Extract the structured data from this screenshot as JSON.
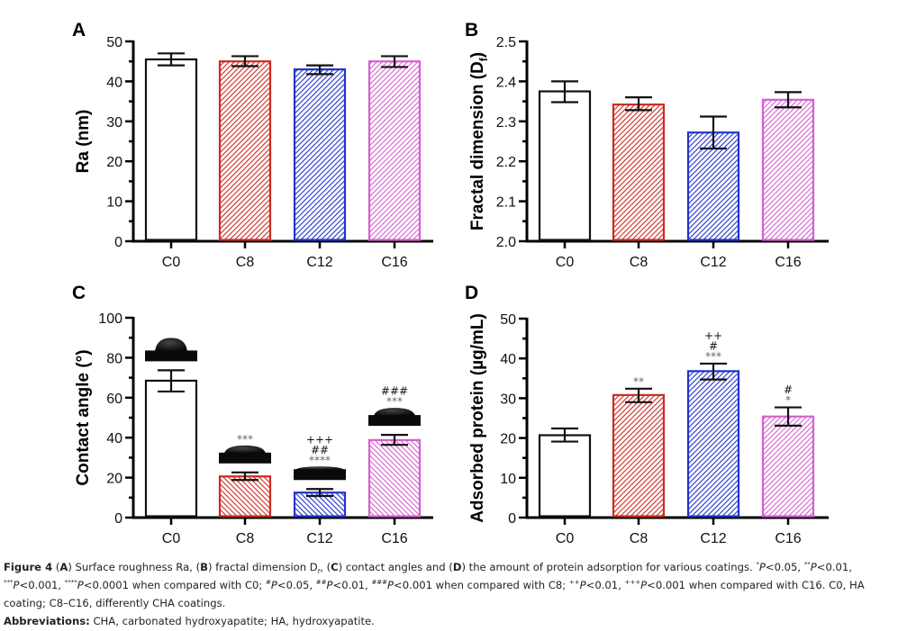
{
  "figure": {
    "colors": {
      "C0": "#111111",
      "C8": "#cc2a22",
      "C12": "#2233cc",
      "C16": "#d45fd0",
      "axis": "#000000",
      "annotation": "#666666",
      "annotation_dark": "#111111"
    }
  },
  "chart_data": [
    {
      "panel": "A",
      "type": "bar",
      "title": "",
      "xlabel": "",
      "ylabel": "Ra (nm)",
      "categories": [
        "C0",
        "C8",
        "C12",
        "C16"
      ],
      "values": [
        45.5,
        45.0,
        43.0,
        45.0
      ],
      "error_upper": [
        47.0,
        46.3,
        44.0,
        46.3
      ],
      "error_lower": [
        44.0,
        43.8,
        41.8,
        43.6
      ],
      "ylim": [
        0,
        50
      ],
      "yticks": [
        0,
        10,
        20,
        30,
        40,
        50
      ],
      "ytick_labels": [
        "0",
        "10",
        "20",
        "30",
        "40",
        "50"
      ],
      "minor_ytick_step": 5,
      "hatch": "backslash",
      "annotations": [
        [],
        [],
        [],
        []
      ],
      "droplets": [
        false,
        false,
        false,
        false
      ],
      "grid": false,
      "legend": "none"
    },
    {
      "panel": "B",
      "type": "bar",
      "title": "",
      "xlabel": "",
      "ylabel": "Fractal dimension (D",
      "ylabel_sub": "f",
      "ylabel_tail": ")",
      "categories": [
        "C0",
        "C8",
        "C12",
        "C16"
      ],
      "values": [
        2.375,
        2.342,
        2.272,
        2.354
      ],
      "error_upper": [
        2.4,
        2.36,
        2.312,
        2.373
      ],
      "error_lower": [
        2.348,
        2.328,
        2.232,
        2.335
      ],
      "ylim": [
        2.0,
        2.5
      ],
      "yticks": [
        2.0,
        2.1,
        2.2,
        2.3,
        2.4,
        2.5
      ],
      "ytick_labels": [
        "2.0",
        "2.1",
        "2.2",
        "2.3",
        "2.4",
        "2.5"
      ],
      "minor_ytick_step": 0.05,
      "hatch": "backslash",
      "annotations": [
        [],
        [],
        [],
        []
      ],
      "droplets": [
        false,
        false,
        false,
        false
      ],
      "grid": false,
      "legend": "none"
    },
    {
      "panel": "C",
      "type": "bar",
      "title": "",
      "xlabel": "",
      "ylabel": "Contact angle (°)",
      "categories": [
        "C0",
        "C8",
        "C12",
        "C16"
      ],
      "values": [
        68.5,
        20.6,
        12.5,
        38.8
      ],
      "error_upper": [
        73.7,
        22.6,
        14.3,
        41.4
      ],
      "error_lower": [
        63.1,
        18.8,
        10.8,
        36.4
      ],
      "ylim": [
        0,
        100
      ],
      "yticks": [
        0,
        20,
        40,
        60,
        80,
        100
      ],
      "ytick_labels": [
        "0",
        "20",
        "40",
        "60",
        "80",
        "100"
      ],
      "minor_ytick_step": 10,
      "hatch": "slash",
      "annotations": [
        [],
        [
          "***"
        ],
        [
          "****",
          "##",
          "+++"
        ],
        [
          "***",
          "###"
        ]
      ],
      "droplets": [
        true,
        true,
        true,
        true
      ],
      "droplet_shape": [
        "tall",
        "medium",
        "flat",
        "medium"
      ],
      "grid": false,
      "legend": "none"
    },
    {
      "panel": "D",
      "type": "bar",
      "title": "",
      "xlabel": "",
      "ylabel": "Adsorbed protein (µg/mL)",
      "categories": [
        "C0",
        "C8",
        "C12",
        "C16"
      ],
      "values": [
        20.7,
        30.8,
        36.8,
        25.4
      ],
      "error_upper": [
        22.4,
        32.4,
        38.7,
        27.7
      ],
      "error_lower": [
        19.1,
        29.0,
        34.7,
        23.1
      ],
      "ylim": [
        0,
        50
      ],
      "yticks": [
        0,
        10,
        20,
        30,
        40,
        50
      ],
      "ytick_labels": [
        "0",
        "10",
        "20",
        "30",
        "40",
        "50"
      ],
      "minor_ytick_step": 5,
      "hatch": "backslash",
      "annotations": [
        [],
        [
          "**"
        ],
        [
          "***",
          "#",
          "++"
        ],
        [
          "*",
          "#"
        ]
      ],
      "droplets": [
        false,
        false,
        false,
        false
      ],
      "grid": false,
      "legend": "none"
    }
  ],
  "caption": {
    "figure_label": "Figure 4",
    "p1": "(",
    "A": "A",
    "t_a": ") Surface roughness Ra, (",
    "B": "B",
    "t_b": ") fractal dimension D",
    "t_b_sub": "f",
    "t_b2": ", (",
    "C": "C",
    "t_c": ") contact angles and (",
    "D": "D",
    "t_d": ") the amount of protein adsorption for various coatings. ",
    "s1": "*",
    "P": "P",
    "v1": "<0.05, ",
    "s2": "**",
    "v2": "<0.01, ",
    "s3": "***",
    "v3": "<0.001, ",
    "s4": "****",
    "v4": "<0.0001 when compared with C0; ",
    "h1": "#",
    "v5": "<0.05, ",
    "h2": "##",
    "v6": "<0.01, ",
    "h3": "###",
    "v7": "<0.001 when compared with C8; ",
    "pl2": "++",
    "v8": "<0.01, ",
    "pl3": "+++",
    "v9": "<0.001 when compared with C16. C0, HA coating; C8–C16, differently CHA coatings.",
    "abbrev_label": "Abbreviations:",
    "abbrev_text": " CHA, carbonated hydroxyapatite; HA, hydroxyapatite."
  }
}
